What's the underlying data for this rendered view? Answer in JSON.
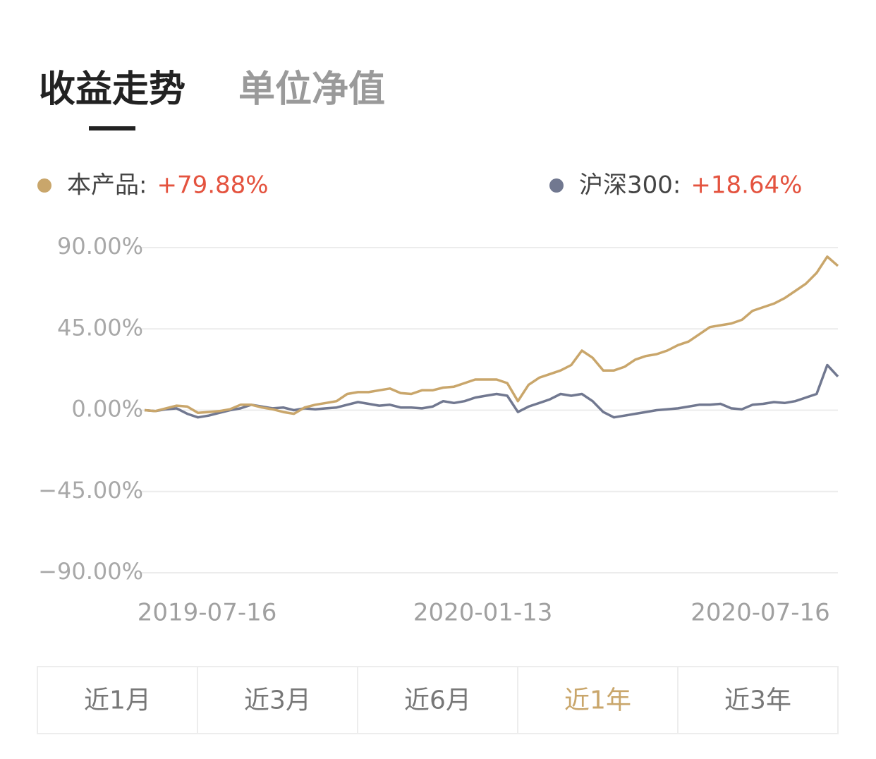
{
  "tabs": {
    "items": [
      "收益走势",
      "单位净值"
    ],
    "active": 0
  },
  "chart_data": {
    "type": "line",
    "x": [
      "2019-06-05",
      "2019-06-12",
      "2019-06-19",
      "2019-06-26",
      "2019-07-03",
      "2019-07-10",
      "2019-07-17",
      "2019-07-24",
      "2019-07-31",
      "2019-08-07",
      "2019-08-14",
      "2019-08-21",
      "2019-08-28",
      "2019-09-04",
      "2019-09-11",
      "2019-09-18",
      "2019-09-25",
      "2019-10-02",
      "2019-10-09",
      "2019-10-16",
      "2019-10-23",
      "2019-10-30",
      "2019-11-06",
      "2019-11-13",
      "2019-11-20",
      "2019-11-27",
      "2019-12-04",
      "2019-12-11",
      "2019-12-18",
      "2019-12-25",
      "2020-01-01",
      "2020-01-08",
      "2020-01-15",
      "2020-01-22",
      "2020-01-29",
      "2020-02-05",
      "2020-02-12",
      "2020-02-19",
      "2020-02-26",
      "2020-03-04",
      "2020-03-11",
      "2020-03-18",
      "2020-03-25",
      "2020-04-01",
      "2020-04-08",
      "2020-04-15",
      "2020-04-22",
      "2020-04-29",
      "2020-05-06",
      "2020-05-13",
      "2020-05-20",
      "2020-05-27",
      "2020-06-03",
      "2020-06-10",
      "2020-06-17",
      "2020-06-24",
      "2020-07-01",
      "2020-07-08",
      "2020-07-15",
      "2020-07-22",
      "2020-07-29",
      "2020-08-05",
      "2020-08-12",
      "2020-08-19",
      "2020-08-26",
      "2020-09-02"
    ],
    "xlim": [
      "2019-06-05",
      "2020-09-02"
    ],
    "xticks": [
      "2019-07-16",
      "2020-01-13",
      "2020-07-16"
    ],
    "ylim": [
      -90,
      90
    ],
    "yticks": [
      {
        "value": 90,
        "label": "90.00%"
      },
      {
        "value": 45,
        "label": "45.00%"
      },
      {
        "value": 0,
        "label": "0.00%"
      },
      {
        "value": -45,
        "label": "−45.00%"
      },
      {
        "value": -90,
        "label": "−90.00%"
      }
    ],
    "grid": true,
    "legend_value_color": "#e4533f",
    "series": [
      {
        "name": "本产品:",
        "color": "#c9a66b",
        "legend_value": "+79.88%",
        "values": [
          0,
          -0.5,
          1,
          2.5,
          2,
          -1.5,
          -1,
          -0.5,
          0.5,
          3,
          3,
          1.5,
          0.5,
          -1,
          -2,
          1.5,
          3,
          4,
          5,
          9,
          10,
          10,
          11,
          12,
          9.5,
          9,
          11,
          11,
          12.5,
          13,
          15,
          17,
          17,
          17,
          15,
          5,
          14,
          18,
          20,
          22,
          25,
          33,
          29,
          22,
          22,
          24,
          28,
          30,
          31,
          33,
          36,
          38,
          42,
          46,
          47,
          48,
          50,
          55,
          57,
          59,
          62,
          66,
          70,
          76,
          85,
          79.88
        ]
      },
      {
        "name": "沪深300:",
        "color": "#717890",
        "legend_value": "+18.64%",
        "values": [
          0,
          -0.5,
          0.5,
          1,
          -2,
          -4,
          -3,
          -1.5,
          0,
          1,
          3,
          2,
          1,
          1.5,
          0,
          1,
          0.5,
          1,
          1.5,
          3,
          4.5,
          3.5,
          2.5,
          3,
          1.5,
          1.5,
          1,
          2,
          5,
          4,
          5,
          7,
          8,
          9,
          8,
          -1,
          2,
          4,
          6,
          9,
          8,
          9,
          5,
          -1,
          -4,
          -3,
          -2,
          -1,
          0,
          0.5,
          1,
          2,
          3,
          3,
          3.5,
          1,
          0.5,
          3,
          3.5,
          4.5,
          4,
          5,
          7,
          9,
          25,
          18.64
        ]
      }
    ]
  },
  "periods": {
    "items": [
      "近1月",
      "近3月",
      "近6月",
      "近1年",
      "近3年"
    ],
    "active": 3
  }
}
